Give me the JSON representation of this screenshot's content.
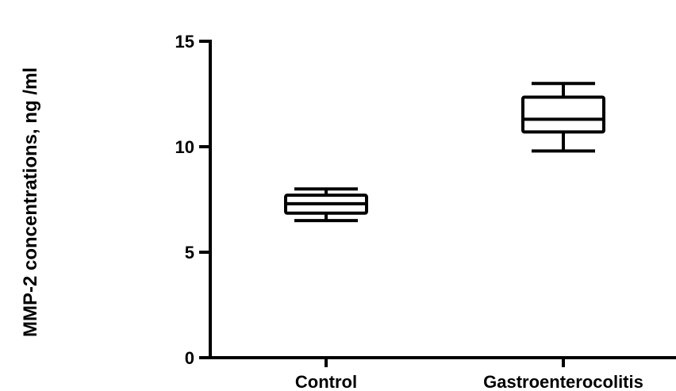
{
  "chart_data": {
    "type": "box",
    "title": "",
    "ylabel": "MMP-2 concentrations, ng /ml",
    "xlabel": "",
    "ylim": [
      0,
      15
    ],
    "yticks": [
      0,
      5,
      10,
      15
    ],
    "ytick_labels": [
      "0",
      "5",
      "10",
      "15"
    ],
    "categories": [
      "Control",
      "Gastroenterocolitis"
    ],
    "boxes": [
      {
        "category": "Control",
        "min": 6.5,
        "q1": 6.85,
        "median": 7.3,
        "q3": 7.7,
        "max": 8.0
      },
      {
        "category": "Gastroenterocolitis",
        "min": 9.8,
        "q1": 10.7,
        "median": 11.3,
        "q3": 12.35,
        "max": 13.0
      }
    ],
    "grid": false,
    "legend": "none",
    "color": "#000000"
  }
}
